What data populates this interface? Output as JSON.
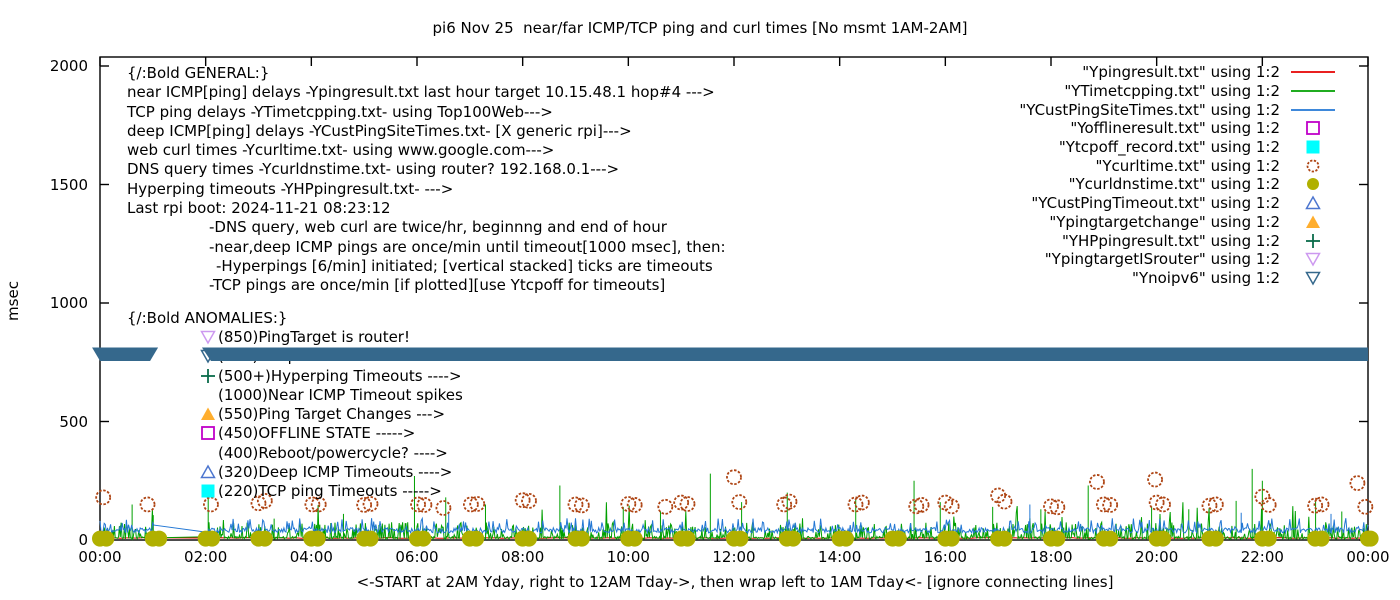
{
  "title": "pi6 Nov 25  near/far ICMP/TCP ping and curl times [No msmt 1AM-2AM]",
  "axes": {
    "ylabel": "msec",
    "xlabel": "<-START at 2AM Yday, right to 12AM Tday->, then wrap left to 1AM Tday<- [ignore connecting lines]",
    "yticks": [
      "0",
      "500",
      "1000",
      "1500",
      "2000"
    ],
    "ytick_values": [
      0,
      500,
      1000,
      1500,
      2000
    ],
    "xticks": [
      "00:00",
      "02:00",
      "04:00",
      "06:00",
      "08:00",
      "10:00",
      "12:00",
      "14:00",
      "16:00",
      "18:00",
      "20:00",
      "22:00",
      "00:00"
    ],
    "xtick_hours": [
      0,
      2,
      4,
      6,
      8,
      10,
      12,
      14,
      16,
      18,
      20,
      22,
      24
    ]
  },
  "colors": {
    "red": "#e60000",
    "green": "#00a000",
    "blue": "#2277d4",
    "magenta": "#c000c8",
    "cyan": "#00ffff",
    "darkred": "#ae4413",
    "olive": "#b0b000",
    "ltblue": "#4d76cf",
    "orange": "#ffae2e",
    "dkgreen": "#0a6b4a",
    "violet": "#cd99f0",
    "teal": "#35688c",
    "band": "#35688c",
    "border": "#000000"
  },
  "legend": {
    "items": [
      {
        "label": "\"Ypingresult.txt\" using 1:2",
        "marker": "line",
        "color": "red"
      },
      {
        "label": "\"YTimetcpping.txt\" using 1:2",
        "marker": "line",
        "color": "green"
      },
      {
        "label": "\"YCustPingSiteTimes.txt\" using 1:2",
        "marker": "line",
        "color": "blue"
      },
      {
        "label": "\"Yofflineresult.txt\" using 1:2",
        "marker": "square-open",
        "color": "magenta"
      },
      {
        "label": "\"Ytcpoff_record.txt\" using 1:2",
        "marker": "square-filled",
        "color": "cyan"
      },
      {
        "label": "\"Ycurltime.txt\" using 1:2",
        "marker": "circle-open",
        "color": "darkred"
      },
      {
        "label": "\"Ycurldnstime.txt\" using 1:2",
        "marker": "circle-filled",
        "color": "olive"
      },
      {
        "label": "\"YCustPingTimeout.txt\" using 1:2",
        "marker": "triangle-up-open",
        "color": "ltblue"
      },
      {
        "label": "\"Ypingtargetchange\" using 1:2",
        "marker": "triangle-up-filled",
        "color": "orange"
      },
      {
        "label": "\"YHPpingresult.txt\" using 1:2",
        "marker": "plus",
        "color": "dkgreen"
      },
      {
        "label": "\"YpingtargetISrouter\" using 1:2",
        "marker": "triangle-down-open",
        "color": "violet"
      },
      {
        "label": "\"Ynoipv6\" using 1:2",
        "marker": "triangle-down-open",
        "color": "teal"
      }
    ]
  },
  "annotations": {
    "general": {
      "lines": [
        {
          "text": "{/:Bold GENERAL:}",
          "indent": 0
        },
        {
          "text": "near ICMP[ping] delays -Ypingresult.txt last hour target 10.15.48.1 hop#4 --->",
          "indent": 0
        },
        {
          "text": "TCP ping delays -YTimetcpping.txt- using Top100Web--->",
          "indent": 0
        },
        {
          "text": "deep ICMP[ping] delays -YCustPingSiteTimes.txt- [X generic rpi]--->",
          "indent": 0
        },
        {
          "text": "web curl times -Ycurltime.txt- using www.google.com--->",
          "indent": 0
        },
        {
          "text": "DNS query times -Ycurldnstime.txt- using router? 192.168.0.1--->",
          "indent": 0
        },
        {
          "text": "Hyperping timeouts -YHPpingresult.txt- --->",
          "indent": 0
        },
        {
          "text": "Last rpi boot: 2024-11-21 08:23:12",
          "indent": 0
        },
        {
          "text": "-DNS query, web curl are twice/hr, beginnng and end of hour",
          "indent": 1
        },
        {
          "text": "-near,deep ICMP pings are once/min until timeout[1000 msec], then:",
          "indent": 1
        },
        {
          "text": "-Hyperpings [6/min] initiated; [vertical stacked] ticks are timeouts",
          "indent": 2
        },
        {
          "text": "-TCP pings are once/min [if plotted][use Ytcpoff for timeouts]",
          "indent": 1
        }
      ]
    },
    "anomalies": {
      "header": "{/:Bold ANOMALIES:}",
      "items": [
        {
          "marker": "triangle-down-open",
          "color": "violet",
          "text": "(850)PingTarget is router!"
        },
        {
          "marker": "triangle-down-open",
          "color": "teal",
          "text": "(785)No ipv6 fallback ---->"
        },
        {
          "marker": "plus",
          "color": "dkgreen",
          "text": "(500+)Hyperping Timeouts ---->"
        },
        {
          "marker": null,
          "color": null,
          "text": "(1000)Near ICMP Timeout spikes"
        },
        {
          "marker": "triangle-up-filled",
          "color": "orange",
          "text": "(550)Ping Target Changes --->"
        },
        {
          "marker": "square-open",
          "color": "magenta",
          "text": "(450)OFFLINE STATE ----->"
        },
        {
          "marker": null,
          "color": null,
          "text": "(400)Reboot/powercycle? ---->"
        },
        {
          "marker": "triangle-up-open",
          "color": "ltblue",
          "text": "(320)Deep ICMP Timeouts ---->"
        },
        {
          "marker": "square-filled",
          "color": "cyan",
          "text": "(220)TCP ping Timeouts ----->"
        }
      ]
    }
  },
  "chart_data": {
    "type": "line",
    "title": "pi6 Nov 25  near/far ICMP/TCP ping and curl times [No msmt 1AM-2AM]",
    "xlabel": "<-START at 2AM Yday, right to 12AM Tday->, then wrap left to 1AM Tday<- [ignore connecting lines]",
    "ylabel": "msec",
    "xlim_hours": [
      0,
      24
    ],
    "ylim": [
      0,
      2000
    ],
    "grid": false,
    "legend_position": "top-right-inside",
    "gap_hours": [
      1.03,
      2.02
    ],
    "series": [
      {
        "name": "Ypingresult.txt",
        "style": "line",
        "color": "red",
        "profile": {
          "base_msec": 7,
          "noise_msec": 3,
          "step_hours": 0.1
        }
      },
      {
        "name": "YTimetcpping.txt",
        "style": "line",
        "color": "green",
        "profile": {
          "base_msec": 4,
          "noise_msec": 11,
          "minor_spike_prob": 0.28,
          "minor_spike_msec": [
            20,
            75
          ],
          "rare_spike_prob": 0.015,
          "rare_spike_msec": [
            80,
            160
          ],
          "step_hours": 0.016
        },
        "spikes": [
          [
            0.6,
            150
          ],
          [
            1.01,
            105
          ],
          [
            2.05,
            190
          ],
          [
            3.3,
            90
          ],
          [
            4.6,
            110
          ],
          [
            5.95,
            270
          ],
          [
            6.55,
            180
          ],
          [
            7.3,
            150
          ],
          [
            8.7,
            230
          ],
          [
            9.9,
            140
          ],
          [
            10.6,
            120
          ],
          [
            11.55,
            280
          ],
          [
            12.15,
            160
          ],
          [
            13.0,
            200
          ],
          [
            14.3,
            170
          ],
          [
            15.4,
            250
          ],
          [
            15.9,
            160
          ],
          [
            16.9,
            140
          ],
          [
            17.8,
            130
          ],
          [
            18.7,
            230
          ],
          [
            19.9,
            140
          ],
          [
            20.6,
            130
          ],
          [
            21.5,
            165
          ],
          [
            21.8,
            300
          ],
          [
            22.0,
            250
          ],
          [
            23.0,
            170
          ],
          [
            23.5,
            120
          ]
        ]
      },
      {
        "name": "YCustPingSiteTimes.txt",
        "style": "line",
        "color": "blue",
        "profile": {
          "base_msec": 30,
          "noise_msec": 22,
          "minor_spike_prob": 0.13,
          "minor_spike_msec": [
            55,
            92
          ],
          "rare_spike_prob": 0.0,
          "rare_spike_msec": [
            0,
            0
          ],
          "step_hours": 0.02
        },
        "spikes": [
          [
            6.6,
            120
          ],
          [
            17.6,
            150
          ],
          [
            21.6,
            115
          ],
          [
            23.3,
            110
          ]
        ]
      },
      {
        "name": "Ycurltime.txt",
        "style": "points-circle-open",
        "color": "darkred",
        "points": [
          [
            0.06,
            180
          ],
          [
            0.9,
            150
          ],
          [
            2.1,
            150
          ],
          [
            3.0,
            155
          ],
          [
            3.12,
            165
          ],
          [
            4.02,
            150
          ],
          [
            4.14,
            150
          ],
          [
            5.0,
            148
          ],
          [
            5.12,
            152
          ],
          [
            6.02,
            150
          ],
          [
            6.14,
            148
          ],
          [
            6.5,
            135
          ],
          [
            7.02,
            150
          ],
          [
            7.14,
            152
          ],
          [
            8.0,
            168
          ],
          [
            8.12,
            165
          ],
          [
            9.0,
            150
          ],
          [
            9.12,
            146
          ],
          [
            10.0,
            152
          ],
          [
            10.12,
            148
          ],
          [
            10.7,
            140
          ],
          [
            11.0,
            158
          ],
          [
            11.12,
            152
          ],
          [
            12.0,
            265
          ],
          [
            12.1,
            160
          ],
          [
            12.95,
            150
          ],
          [
            13.05,
            162
          ],
          [
            14.3,
            150
          ],
          [
            14.42,
            158
          ],
          [
            15.45,
            142
          ],
          [
            15.55,
            148
          ],
          [
            16.0,
            158
          ],
          [
            16.12,
            142
          ],
          [
            17.0,
            188
          ],
          [
            17.12,
            162
          ],
          [
            18.0,
            142
          ],
          [
            18.12,
            138
          ],
          [
            18.87,
            245
          ],
          [
            19.0,
            150
          ],
          [
            19.12,
            148
          ],
          [
            19.97,
            255
          ],
          [
            20.0,
            158
          ],
          [
            20.12,
            150
          ],
          [
            21.0,
            145
          ],
          [
            21.12,
            150
          ],
          [
            22.0,
            183
          ],
          [
            22.12,
            148
          ],
          [
            23.0,
            145
          ],
          [
            23.12,
            150
          ],
          [
            23.8,
            240
          ],
          [
            23.95,
            140
          ]
        ]
      },
      {
        "name": "Ycurldnstime.txt",
        "style": "points-circle-filled",
        "color": "olive",
        "points_hourly": {
          "hours_from": 0,
          "hours_to": 24,
          "value_msec": 6,
          "pair_offset_hours": 0.12
        }
      },
      {
        "name": "Ynoipv6",
        "style": "band",
        "color": "teal",
        "value_msec": 785,
        "segments_hours": [
          [
            -0.15,
            1.1
          ],
          [
            1.93,
            24.15
          ]
        ]
      }
    ]
  }
}
